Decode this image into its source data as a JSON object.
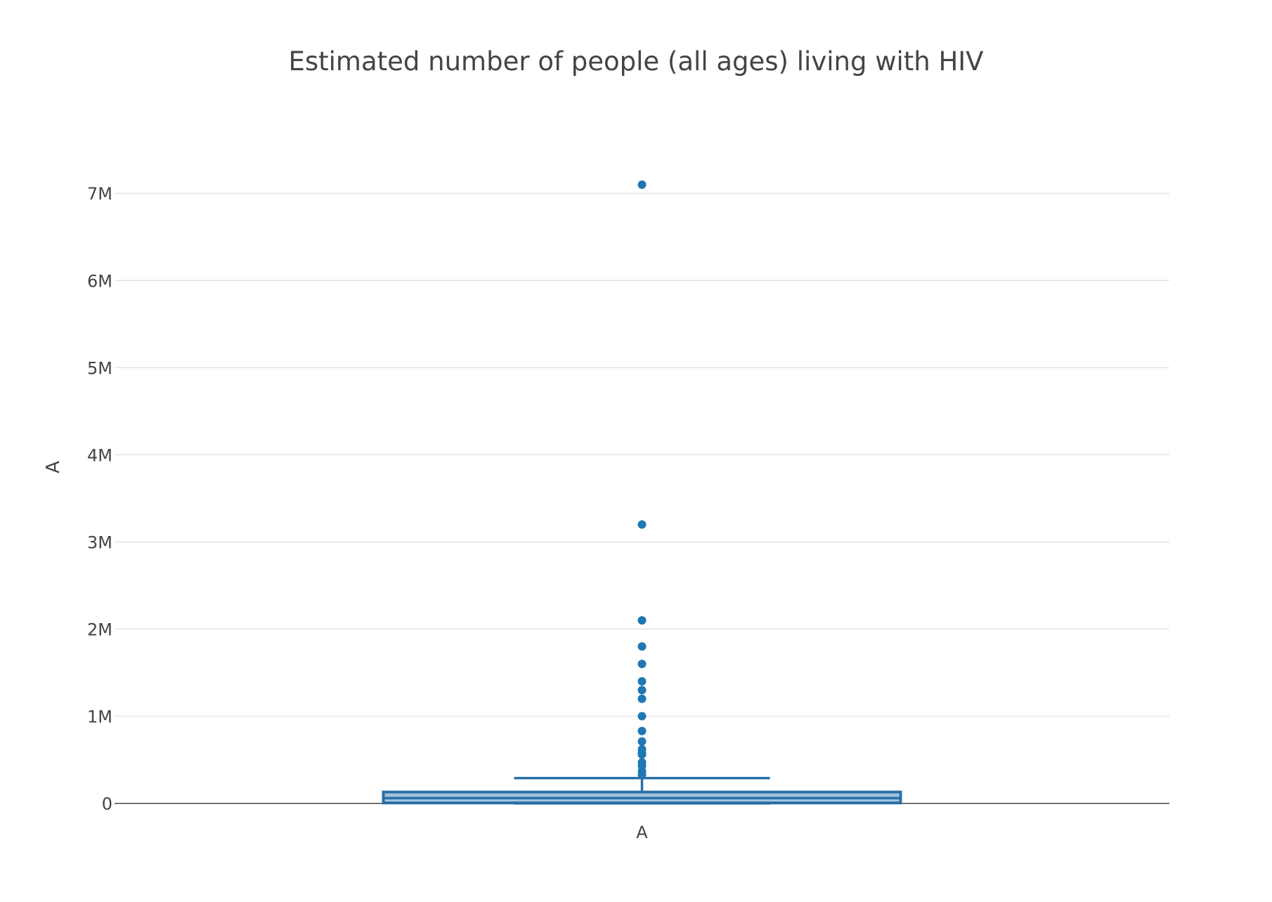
{
  "chart_data": {
    "type": "box",
    "title": "Estimated number of people (all ages) living with HIV",
    "xlabel": "",
    "ylabel": "A",
    "categories": [
      "A"
    ],
    "ylim": [
      -100000,
      7800000
    ],
    "yticks": [
      0,
      1000000,
      2000000,
      3000000,
      4000000,
      5000000,
      6000000,
      7000000
    ],
    "ytick_labels": [
      "0",
      "1M",
      "2M",
      "3M",
      "4M",
      "5M",
      "6M",
      "7M"
    ],
    "grid": true,
    "legend": "none",
    "box": {
      "lower_whisker": 0,
      "q1": 5000,
      "median": 60000,
      "q3": 130000,
      "upper_whisker": 290000
    },
    "outliers": [
      7100000,
      3200000,
      2100000,
      1800000,
      1600000,
      1400000,
      1300000,
      1200000,
      1000000,
      830000,
      710000,
      620000,
      580000,
      560000,
      470000,
      430000,
      370000,
      330000
    ],
    "colors": {
      "box_line": "#2a6fa8",
      "box_fill": "#a3c4de",
      "outlier": "#1f77b4",
      "grid": "#e5e5e5",
      "zero_line": "#444444",
      "text": "#444444"
    }
  }
}
